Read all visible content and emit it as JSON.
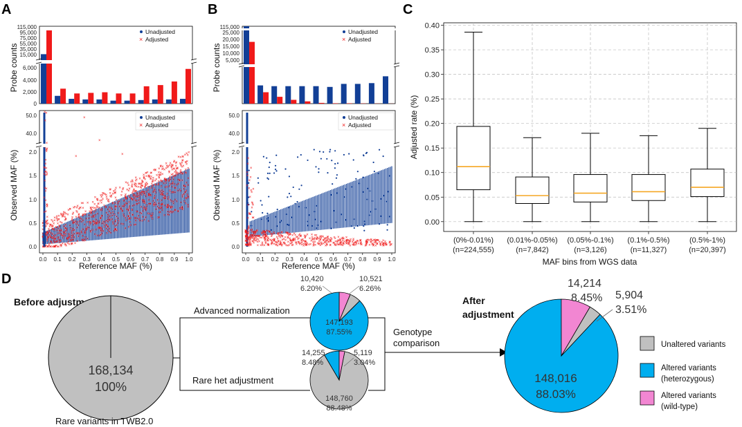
{
  "panel_labels": [
    "A",
    "B",
    "C",
    "D"
  ],
  "colors": {
    "unadjusted": "#123f96",
    "adjusted": "#f01a1a",
    "median": "#f5a623",
    "unaltered": "#c0c0c0",
    "het": "#00aeef",
    "wild": "#f286d2"
  },
  "chart_data": [
    {
      "panel": "A-top",
      "type": "bar",
      "ylabel": "Probe counts",
      "yticks_upper": [
        "115,000",
        "95,000",
        "75,000",
        "55,000",
        "35,000",
        "15,000"
      ],
      "yticks_lower": [
        "6,000",
        "4,000",
        "2,000",
        "0"
      ],
      "categories": [
        "0.0",
        "0.1",
        "0.2",
        "0.3",
        "0.4",
        "0.5",
        "0.6",
        "0.7",
        "0.8",
        "0.9",
        "1.0"
      ],
      "series": [
        {
          "name": "Unadjusted",
          "values": [
            24000,
            1300,
            800,
            700,
            700,
            500,
            500,
            600,
            700,
            700,
            800
          ]
        },
        {
          "name": "Adjusted",
          "values": [
            110000,
            2500,
            1700,
            1800,
            1900,
            1700,
            1700,
            2900,
            3100,
            3700,
            5800
          ]
        }
      ],
      "legend": [
        "Unadjusted",
        "Adjusted"
      ]
    },
    {
      "panel": "A-bottom",
      "type": "scatter",
      "xlabel": "Reference MAF (%)",
      "ylabel": "Observed MAF (%)",
      "xticks": [
        "0.0",
        "0.1",
        "0.2",
        "0.3",
        "0.4",
        "0.5",
        "0.6",
        "0.7",
        "0.8",
        "0.9",
        "1.0"
      ],
      "yticks_upper": [
        "50.0",
        "40.0"
      ],
      "yticks_lower": [
        "2.0",
        "1.5",
        "1.0",
        "0.5",
        "0.0"
      ],
      "legend": [
        "Unadjusted",
        "Adjusted"
      ]
    },
    {
      "panel": "B-top",
      "type": "bar",
      "ylabel": "Probe counts",
      "yticks_upper": [
        "115,000",
        "25,000",
        "20,000",
        "15,000",
        "10,000",
        "5,000"
      ],
      "categories": [
        "0.0",
        "0.1",
        "0.2",
        "0.3",
        "0.4",
        "0.5",
        "0.6",
        "0.7",
        "0.8",
        "0.9",
        "1.0"
      ],
      "series": [
        {
          "name": "Unadjusted",
          "values": [
            100000,
            2400,
            2300,
            2300,
            2300,
            2300,
            2200,
            2600,
            2600,
            2700,
            3600
          ]
        },
        {
          "name": "Adjusted",
          "values": [
            19000,
            1500,
            900,
            500,
            300,
            100,
            50,
            50,
            30,
            20,
            10
          ]
        }
      ],
      "legend": [
        "Unadjusted",
        "Adjusted"
      ]
    },
    {
      "panel": "B-bottom",
      "type": "scatter",
      "xlabel": "Reference MAF (%)",
      "ylabel": "Observed MAF (%)",
      "xticks": [
        "0.0",
        "0.1",
        "0.2",
        "0.3",
        "0.4",
        "0.5",
        "0.6",
        "0.7",
        "0.8",
        "0.9",
        "1.0"
      ],
      "yticks_upper": [
        "50.0",
        "40.0"
      ],
      "yticks_lower": [
        "2.0",
        "1.5",
        "1.0",
        "0.5",
        "0.0"
      ],
      "legend": [
        "Unadjusted",
        "Adjusted"
      ]
    },
    {
      "panel": "C",
      "type": "box",
      "xlabel": "MAF bins from WGS data",
      "ylabel": "Adjusted rate (%)",
      "ylim": [
        -0.02,
        0.405
      ],
      "yticks": [
        "0.40",
        "0.35",
        "0.30",
        "0.25",
        "0.20",
        "0.15",
        "0.10",
        "0.05",
        "0.00"
      ],
      "categories": [
        {
          "bin": "(0%-0.01%)",
          "n": "(n=224,555)"
        },
        {
          "bin": "(0.01%-0.05%)",
          "n": "(n=7,842)"
        },
        {
          "bin": "(0.05%-0.1%)",
          "n": "(n=3,126)"
        },
        {
          "bin": "(0.1%-0.5%)",
          "n": "(n=11,327)"
        },
        {
          "bin": "(0.5%-1%)",
          "n": "(n=20,397)"
        }
      ],
      "boxes": [
        {
          "min": 0.0,
          "q1": 0.065,
          "median": 0.112,
          "q3": 0.194,
          "max": 0.386
        },
        {
          "min": 0.0,
          "q1": 0.037,
          "median": 0.053,
          "q3": 0.091,
          "max": 0.171
        },
        {
          "min": 0.0,
          "q1": 0.04,
          "median": 0.058,
          "q3": 0.096,
          "max": 0.18
        },
        {
          "min": 0.0,
          "q1": 0.043,
          "median": 0.061,
          "q3": 0.096,
          "max": 0.175
        },
        {
          "min": 0.0,
          "q1": 0.051,
          "median": 0.07,
          "q3": 0.107,
          "max": 0.19
        }
      ]
    },
    {
      "panel": "D",
      "type": "pie",
      "before": {
        "title": "Before adjustment",
        "value": "168,134",
        "pct": "100%",
        "caption": "Rare variants in TWB2.0"
      },
      "advanced": {
        "label": "Advanced normalization",
        "slices": [
          {
            "name": "Altered variants (heterozygous)",
            "value": "147,193",
            "pct": "87.55%"
          },
          {
            "name": "Altered variants (wild-type)",
            "value": "10,420",
            "pct": "6.20%"
          },
          {
            "name": "Unaltered variants",
            "value": "10,521",
            "pct": "6.26%"
          }
        ]
      },
      "rare": {
        "label": "Rare het adjustment",
        "slices": [
          {
            "name": "Unaltered variants",
            "value": "148,760",
            "pct": "88.48%"
          },
          {
            "name": "Altered variants (heterozygous)",
            "value": "14,255",
            "pct": "8.48%"
          },
          {
            "name": "Altered variants (wild-type)",
            "value": "5,119",
            "pct": "3.04%"
          }
        ]
      },
      "comparison_label": [
        "Genotype",
        "comparison"
      ],
      "after": {
        "title": [
          "After",
          "adjustment"
        ],
        "slices": [
          {
            "name": "Altered variants (heterozygous)",
            "value": "148,016",
            "pct": "88.03%"
          },
          {
            "name": "Altered variants (wild-type)",
            "value": "14,214",
            "pct": "8.45%"
          },
          {
            "name": "Unaltered variants",
            "value": "5,904",
            "pct": "3.51%"
          }
        ]
      },
      "legend": [
        {
          "label": [
            "Unaltered variants"
          ],
          "color": "#c0c0c0"
        },
        {
          "label": [
            "Altered variants",
            "(heterozygous)"
          ],
          "color": "#00aeef"
        },
        {
          "label": [
            "Altered variants",
            "(wild-type)"
          ],
          "color": "#f286d2"
        }
      ]
    }
  ]
}
